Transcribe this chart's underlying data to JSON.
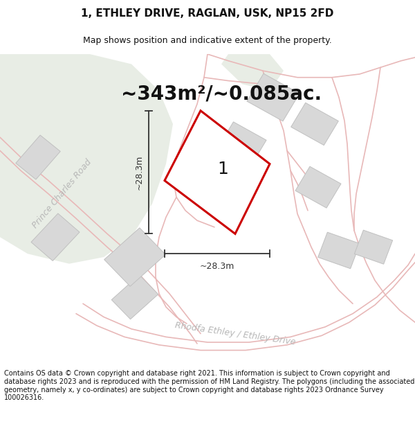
{
  "title_line1": "1, ETHLEY DRIVE, RAGLAN, USK, NP15 2FD",
  "title_line2": "Map shows position and indicative extent of the property.",
  "area_label": "~343m²/~0.085ac.",
  "plot_number": "1",
  "dim_h": "~28.3m",
  "dim_w": "~28.3m",
  "road_label1": "Prince Charles Road",
  "road_label2": "Rhodfa Ethley / Ethley Drive",
  "footer_text": "Contains OS data © Crown copyright and database right 2021. This information is subject to Crown copyright and database rights 2023 and is reproduced with the permission of HM Land Registry. The polygons (including the associated geometry, namely x, y co-ordinates) are subject to Crown copyright and database rights 2023 Ordnance Survey 100026316.",
  "map_bg": "#f2f2ee",
  "green_color": "#e8ede5",
  "road_line_color": "#e8b8b8",
  "road_fill_color": "#eedcdc",
  "plot_fill": "#ffffff",
  "plot_edge": "#cc0000",
  "building_fill": "#d8d8d8",
  "building_edge": "#c0c0c0",
  "dim_color": "#333333",
  "road_text_color": "#b0b0b0",
  "title_fontsize": 11,
  "subtitle_fontsize": 9,
  "area_fontsize": 20,
  "plot_label_fontsize": 18,
  "dim_fontsize": 9,
  "road_fontsize": 9,
  "footer_fontsize": 7
}
